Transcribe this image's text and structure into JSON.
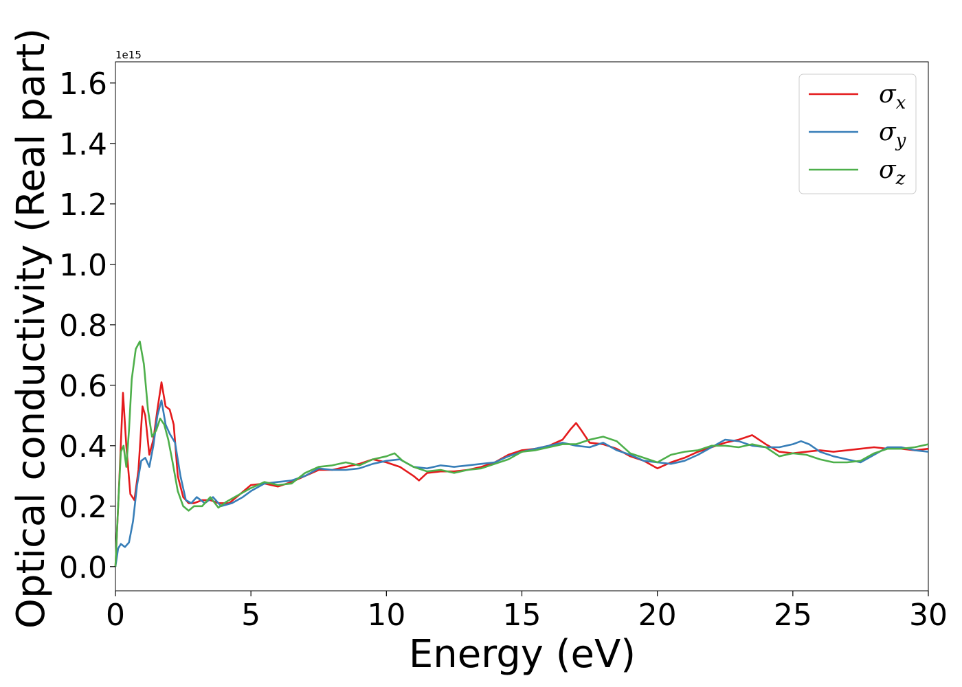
{
  "chart_data": {
    "type": "line",
    "xlabel": "Energy (eV)",
    "ylabel": "Optical conductivity (Real part)",
    "y_offset_label": "1e15",
    "xlim": [
      0,
      30
    ],
    "ylim": [
      -0.08,
      1.67
    ],
    "x_ticks": [
      0,
      5,
      10,
      15,
      20,
      25,
      30
    ],
    "x_tick_labels": [
      "0",
      "5",
      "10",
      "15",
      "20",
      "25",
      "30"
    ],
    "y_ticks": [
      0.0,
      0.2,
      0.4,
      0.6,
      0.8,
      1.0,
      1.2,
      1.4,
      1.6
    ],
    "y_tick_labels": [
      "0.0",
      "0.2",
      "0.4",
      "0.6",
      "0.8",
      "1.0",
      "1.2",
      "1.4",
      "1.6"
    ],
    "grid": false,
    "legend_position": "top-right",
    "series": [
      {
        "name": "σx",
        "legend_symbol": "σ",
        "legend_sub": "x",
        "color": "#e41a1c",
        "x": [
          0,
          0.15,
          0.28,
          0.4,
          0.55,
          0.7,
          0.85,
          1.0,
          1.1,
          1.25,
          1.4,
          1.55,
          1.7,
          1.85,
          2.0,
          2.15,
          2.3,
          2.5,
          2.7,
          2.9,
          3.2,
          3.5,
          3.8,
          4.2,
          4.6,
          5.0,
          5.5,
          6.0,
          6.5,
          7.0,
          7.5,
          8.0,
          8.5,
          9.0,
          9.5,
          10.0,
          10.5,
          11.0,
          11.2,
          11.5,
          12.0,
          12.5,
          13.0,
          13.5,
          14.0,
          14.5,
          15.0,
          15.5,
          16.0,
          16.5,
          16.8,
          17.0,
          17.2,
          17.5,
          18.0,
          18.5,
          19.0,
          19.5,
          20.0,
          20.5,
          21.0,
          21.5,
          22.0,
          22.5,
          23.0,
          23.5,
          24.0,
          24.5,
          25.0,
          25.5,
          26.0,
          26.5,
          27.0,
          27.5,
          28.0,
          28.5,
          29.0,
          29.5,
          30.0
        ],
        "y": [
          0.0,
          0.3,
          0.575,
          0.4,
          0.24,
          0.22,
          0.32,
          0.53,
          0.5,
          0.37,
          0.42,
          0.52,
          0.61,
          0.53,
          0.52,
          0.47,
          0.3,
          0.23,
          0.21,
          0.21,
          0.22,
          0.22,
          0.21,
          0.21,
          0.24,
          0.27,
          0.275,
          0.265,
          0.28,
          0.3,
          0.32,
          0.32,
          0.33,
          0.34,
          0.355,
          0.345,
          0.33,
          0.3,
          0.285,
          0.31,
          0.315,
          0.315,
          0.32,
          0.33,
          0.345,
          0.37,
          0.385,
          0.39,
          0.4,
          0.42,
          0.455,
          0.475,
          0.45,
          0.41,
          0.405,
          0.39,
          0.365,
          0.35,
          0.325,
          0.345,
          0.36,
          0.38,
          0.395,
          0.41,
          0.42,
          0.435,
          0.405,
          0.38,
          0.375,
          0.38,
          0.385,
          0.38,
          0.385,
          0.39,
          0.395,
          0.39,
          0.39,
          0.385,
          0.39
        ]
      },
      {
        "name": "σy",
        "legend_symbol": "σ",
        "legend_sub": "y",
        "color": "#377eb8",
        "x": [
          0,
          0.1,
          0.2,
          0.35,
          0.5,
          0.65,
          0.8,
          0.95,
          1.1,
          1.25,
          1.4,
          1.55,
          1.7,
          1.85,
          2.0,
          2.2,
          2.4,
          2.6,
          2.8,
          3.0,
          3.3,
          3.6,
          3.9,
          4.3,
          4.7,
          5.0,
          5.5,
          6.0,
          6.5,
          7.0,
          7.5,
          8.0,
          8.5,
          9.0,
          9.5,
          10.0,
          10.5,
          11.0,
          11.5,
          12.0,
          12.5,
          13.0,
          13.5,
          14.0,
          14.5,
          15.0,
          15.5,
          16.0,
          16.5,
          17.0,
          17.5,
          18.0,
          18.5,
          19.0,
          19.5,
          20.0,
          20.5,
          21.0,
          21.5,
          22.0,
          22.5,
          23.0,
          23.5,
          24.0,
          24.5,
          25.0,
          25.3,
          25.6,
          26.0,
          26.5,
          27.0,
          27.5,
          28.0,
          28.5,
          29.0,
          29.5,
          30.0
        ],
        "y": [
          0.0,
          0.06,
          0.075,
          0.065,
          0.08,
          0.15,
          0.27,
          0.35,
          0.36,
          0.33,
          0.4,
          0.5,
          0.55,
          0.47,
          0.44,
          0.41,
          0.3,
          0.22,
          0.21,
          0.23,
          0.21,
          0.23,
          0.2,
          0.21,
          0.23,
          0.25,
          0.275,
          0.28,
          0.285,
          0.3,
          0.325,
          0.32,
          0.32,
          0.325,
          0.34,
          0.35,
          0.355,
          0.33,
          0.325,
          0.335,
          0.33,
          0.335,
          0.34,
          0.345,
          0.365,
          0.38,
          0.39,
          0.4,
          0.41,
          0.4,
          0.395,
          0.41,
          0.385,
          0.37,
          0.35,
          0.345,
          0.34,
          0.35,
          0.37,
          0.395,
          0.42,
          0.415,
          0.4,
          0.395,
          0.395,
          0.405,
          0.415,
          0.405,
          0.38,
          0.365,
          0.355,
          0.345,
          0.37,
          0.395,
          0.395,
          0.385,
          0.38
        ]
      },
      {
        "name": "σz",
        "legend_symbol": "σ",
        "legend_sub": "z",
        "color": "#4daf4a",
        "x": [
          0,
          0.1,
          0.2,
          0.3,
          0.4,
          0.5,
          0.6,
          0.75,
          0.9,
          1.05,
          1.2,
          1.35,
          1.5,
          1.65,
          1.8,
          1.95,
          2.1,
          2.3,
          2.5,
          2.7,
          2.9,
          3.2,
          3.5,
          3.8,
          4.1,
          4.5,
          5.0,
          5.5,
          6.0,
          6.5,
          7.0,
          7.5,
          8.0,
          8.5,
          9.0,
          9.5,
          10.0,
          10.3,
          10.6,
          11.0,
          11.5,
          12.0,
          12.5,
          13.0,
          13.5,
          14.0,
          14.5,
          15.0,
          15.5,
          16.0,
          16.5,
          17.0,
          17.5,
          18.0,
          18.5,
          19.0,
          19.5,
          20.0,
          20.5,
          21.0,
          21.5,
          22.0,
          22.5,
          23.0,
          23.5,
          24.0,
          24.5,
          25.0,
          25.5,
          26.0,
          26.5,
          27.0,
          27.5,
          28.0,
          28.5,
          29.0,
          29.5,
          30.0
        ],
        "y": [
          0.0,
          0.2,
          0.38,
          0.4,
          0.33,
          0.45,
          0.62,
          0.72,
          0.745,
          0.67,
          0.52,
          0.43,
          0.45,
          0.49,
          0.47,
          0.42,
          0.35,
          0.25,
          0.2,
          0.185,
          0.2,
          0.2,
          0.23,
          0.195,
          0.215,
          0.235,
          0.26,
          0.28,
          0.27,
          0.275,
          0.31,
          0.33,
          0.335,
          0.345,
          0.335,
          0.355,
          0.365,
          0.375,
          0.35,
          0.33,
          0.315,
          0.32,
          0.31,
          0.32,
          0.325,
          0.34,
          0.355,
          0.38,
          0.385,
          0.395,
          0.405,
          0.405,
          0.42,
          0.43,
          0.415,
          0.375,
          0.36,
          0.345,
          0.37,
          0.38,
          0.385,
          0.4,
          0.4,
          0.395,
          0.405,
          0.395,
          0.365,
          0.375,
          0.37,
          0.355,
          0.345,
          0.345,
          0.35,
          0.375,
          0.39,
          0.39,
          0.395,
          0.405
        ]
      }
    ]
  }
}
